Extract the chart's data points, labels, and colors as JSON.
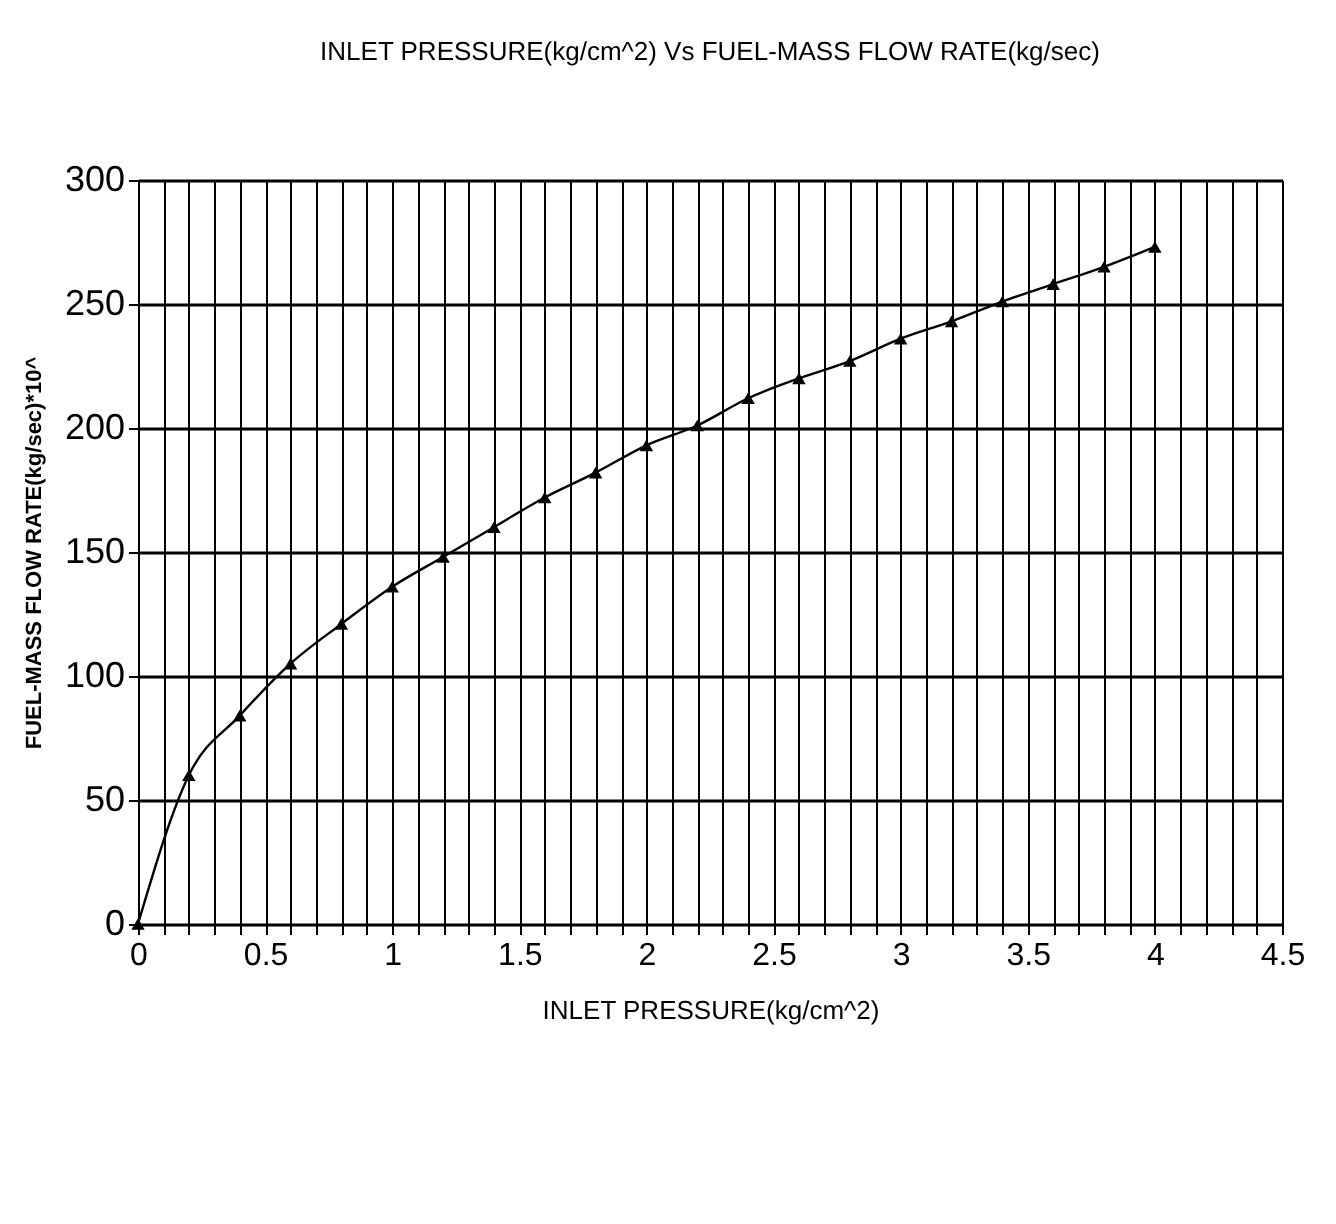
{
  "chart_data": {
    "type": "line",
    "title": "INLET PRESSURE(kg/cm^2) Vs FUEL-MASS FLOW RATE(kg/sec)",
    "xlabel": "INLET PRESSURE(kg/cm^2)",
    "ylabel": "FUEL-MASS FLOW RATE(kg/sec)*10^",
    "x": [
      0,
      0.2,
      0.4,
      0.6,
      0.8,
      1.0,
      1.2,
      1.4,
      1.6,
      1.8,
      2.0,
      2.2,
      2.4,
      2.6,
      2.8,
      3.0,
      3.2,
      3.4,
      3.6,
      3.8,
      4.0
    ],
    "series": [
      {
        "color": "#000000",
        "values": [
          0,
          60,
          84,
          105,
          121,
          136,
          148,
          160,
          172,
          182,
          193,
          201,
          212,
          220,
          227,
          236,
          243,
          251,
          258,
          265,
          273
        ]
      }
    ],
    "xlim": [
      0,
      4.5
    ],
    "ylim": [
      0,
      300
    ],
    "xticks": [
      0,
      {
        "value": 0.1,
        "label": null
      },
      {
        "value": 0.2,
        "label": null
      },
      {
        "value": 0.3,
        "label": null
      },
      {
        "value": 0.4,
        "label": null
      },
      0.5,
      {
        "value": 0.6,
        "label": null
      },
      {
        "value": 0.7,
        "label": null
      },
      {
        "value": 0.8,
        "label": null
      },
      {
        "value": 0.9,
        "label": null
      },
      1,
      {
        "value": 1.1,
        "label": null
      },
      {
        "value": 1.2,
        "label": null
      },
      {
        "value": 1.3,
        "label": null
      },
      {
        "value": 1.4,
        "label": null
      },
      1.5,
      {
        "value": 1.6,
        "label": null
      },
      {
        "value": 1.7,
        "label": null
      },
      {
        "value": 1.8,
        "label": null
      },
      {
        "value": 1.9,
        "label": null
      },
      2,
      {
        "value": 2.1,
        "label": null
      },
      {
        "value": 2.2,
        "label": null
      },
      {
        "value": 2.3,
        "label": null
      },
      {
        "value": 2.4,
        "label": null
      },
      2.5,
      {
        "value": 2.6,
        "label": null
      },
      {
        "value": 2.7,
        "label": null
      },
      {
        "value": 2.8,
        "label": null
      },
      {
        "value": 2.9,
        "label": null
      },
      3,
      {
        "value": 3.1,
        "label": null
      },
      {
        "value": 3.2,
        "label": null
      },
      {
        "value": 3.3,
        "label": null
      },
      {
        "value": 3.4,
        "label": null
      },
      3.5,
      {
        "value": 3.6,
        "label": null
      },
      {
        "value": 3.7,
        "label": null
      },
      {
        "value": 3.8,
        "label": null
      },
      {
        "value": 3.9,
        "label": null
      },
      4,
      {
        "value": 4.1,
        "label": null
      },
      {
        "value": 4.2,
        "label": null
      },
      {
        "value": 4.3,
        "label": null
      },
      {
        "value": 4.4,
        "label": null
      },
      4.5
    ],
    "yticks": [
      0,
      50,
      100,
      150,
      200,
      250,
      300
    ],
    "grid": true,
    "marker": "triangle",
    "line_style": "solid"
  }
}
